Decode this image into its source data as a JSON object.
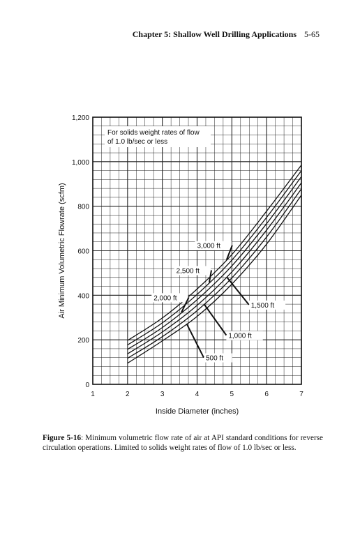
{
  "header": {
    "chapter": "Chapter 5: Shallow Well Drilling Applications",
    "page": "5-65"
  },
  "caption": {
    "figure": "Figure 5-16",
    "text": ": Minimum volumetric flow rate of air at API standard conditions for reverse circulation operations. Limited to solids weight rates of flow of 1.0 lb/sec or less."
  },
  "chart_data": {
    "type": "line",
    "xlabel": "Inside Diameter (inches)",
    "ylabel": "Air Minimum Volumetric Flowrate (scfm)",
    "xlim": [
      1,
      7
    ],
    "ylim": [
      0,
      1200
    ],
    "xticks": [
      "1",
      "2",
      "3",
      "4",
      "5",
      "6",
      "7"
    ],
    "yticks": [
      "0",
      "200",
      "400",
      "600",
      "800",
      "1,000",
      "1,200"
    ],
    "grid": true,
    "note": [
      "For solids weight rates of flow",
      "of 1.0 lb/sec or less"
    ],
    "series": [
      {
        "name": "500 ft",
        "x": [
          2,
          3,
          4,
          5,
          6,
          7
        ],
        "y": [
          95,
          195,
          305,
          450,
          630,
          850
        ]
      },
      {
        "name": "1,000 ft",
        "x": [
          2,
          3,
          4,
          5,
          6,
          7
        ],
        "y": [
          117,
          214,
          331,
          478,
          662,
          878
        ]
      },
      {
        "name": "1,500 ft",
        "x": [
          2,
          3,
          4,
          5,
          6,
          7
        ],
        "y": [
          137,
          235,
          355,
          505,
          693,
          905
        ]
      },
      {
        "name": "2,000 ft",
        "x": [
          2,
          3,
          4,
          5,
          6,
          7
        ],
        "y": [
          157,
          255,
          380,
          532,
          722,
          933
        ]
      },
      {
        "name": "2,500 ft",
        "x": [
          2,
          3,
          4,
          5,
          6,
          7
        ],
        "y": [
          177,
          276,
          404,
          558,
          750,
          960
        ]
      },
      {
        "name": "3,000 ft",
        "x": [
          2,
          3,
          4,
          5,
          6,
          7
        ],
        "y": [
          197,
          298,
          428,
          583,
          778,
          985
        ]
      }
    ],
    "annotations": [
      {
        "text": "3,000 ft",
        "series": "3,000 ft",
        "at_x": 4.85,
        "label_x": 4.0,
        "label_y": 612
      },
      {
        "text": "2,500 ft",
        "series": "2,500 ft",
        "at_x": 4.35,
        "label_x": 3.4,
        "label_y": 500
      },
      {
        "text": "2,000 ft",
        "series": "2,000 ft",
        "at_x": 3.55,
        "label_x": 2.75,
        "label_y": 378
      },
      {
        "text": "1,500 ft",
        "series": "1,500 ft",
        "at_x": 4.85,
        "label_x": 5.55,
        "label_y": 345
      },
      {
        "text": "1,000 ft",
        "series": "1,000 ft",
        "at_x": 4.2,
        "label_x": 4.9,
        "label_y": 208
      },
      {
        "text": "500 ft",
        "series": "500 ft",
        "at_x": 3.7,
        "label_x": 4.25,
        "label_y": 108
      }
    ]
  }
}
